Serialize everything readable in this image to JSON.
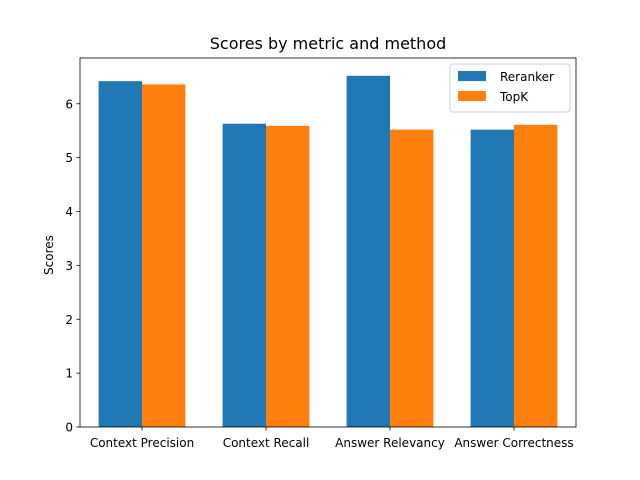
{
  "chart_data": {
    "type": "bar",
    "title": "Scores by metric and method",
    "xlabel": "",
    "ylabel": "Scores",
    "categories": [
      "Context Precision",
      "Context Recall",
      "Answer Relevancy",
      "Answer Correctness"
    ],
    "series": [
      {
        "name": "Reranker",
        "color": "#1f77b4",
        "values": [
          6.42,
          5.63,
          6.52,
          5.52
        ]
      },
      {
        "name": "TopK",
        "color": "#ff7f0e",
        "values": [
          6.36,
          5.59,
          5.52,
          5.61
        ]
      }
    ],
    "ylim": [
      0,
      6.85
    ],
    "yticks": [
      0,
      1,
      2,
      3,
      4,
      5,
      6
    ],
    "grid": false,
    "legend_position": "top-right"
  }
}
